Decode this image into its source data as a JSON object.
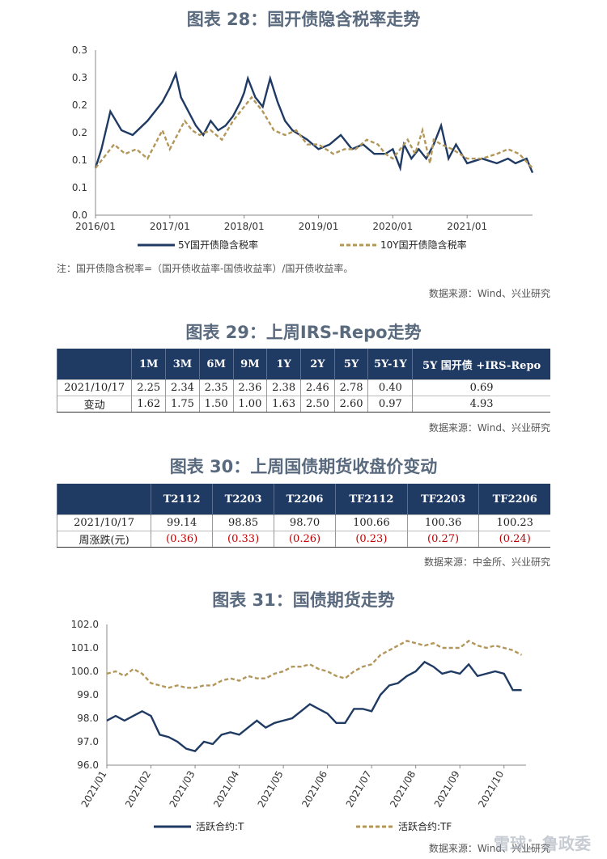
{
  "fig28": {
    "title": "图表 28：国开债隐含税率走势",
    "note": "注：国开债隐含税率=（国开债收益率-国债收益率）/国开债收益率。",
    "source": "数据来源：Wind、兴业研究",
    "chart_data": {
      "type": "line",
      "yticks": [
        "0.0",
        "0.1",
        "0.1",
        "0.2",
        "0.2",
        "0.3",
        "0.3"
      ],
      "ylim": [
        0,
        0.35
      ],
      "xticks": [
        "2016/01",
        "2017/01",
        "2018/01",
        "2019/01",
        "2020/01",
        "2021/01"
      ],
      "series": [
        {
          "name": "5Y国开债隐含税率",
          "color": "#1f3a63",
          "dash": false,
          "x": [
            2016.0,
            2016.08,
            2016.2,
            2016.35,
            2016.5,
            2016.7,
            2016.9,
            2017.0,
            2017.08,
            2017.15,
            2017.25,
            2017.35,
            2017.45,
            2017.55,
            2017.65,
            2017.75,
            2017.85,
            2017.95,
            2018.0,
            2018.05,
            2018.15,
            2018.25,
            2018.35,
            2018.45,
            2018.55,
            2018.65,
            2018.75,
            2018.85,
            2019.0,
            2019.15,
            2019.3,
            2019.45,
            2019.6,
            2019.75,
            2019.9,
            2020.0,
            2020.1,
            2020.15,
            2020.25,
            2020.35,
            2020.45,
            2020.55,
            2020.65,
            2020.75,
            2020.85,
            2021.0,
            2021.2,
            2021.4,
            2021.55,
            2021.65,
            2021.8,
            2021.88
          ],
          "y": [
            0.1,
            0.14,
            0.22,
            0.18,
            0.17,
            0.2,
            0.24,
            0.27,
            0.3,
            0.25,
            0.22,
            0.19,
            0.17,
            0.2,
            0.18,
            0.19,
            0.21,
            0.24,
            0.26,
            0.29,
            0.25,
            0.23,
            0.29,
            0.24,
            0.2,
            0.18,
            0.17,
            0.16,
            0.14,
            0.15,
            0.17,
            0.14,
            0.15,
            0.13,
            0.13,
            0.14,
            0.1,
            0.15,
            0.12,
            0.14,
            0.12,
            0.15,
            0.19,
            0.12,
            0.15,
            0.11,
            0.12,
            0.11,
            0.12,
            0.11,
            0.12,
            0.09
          ]
        },
        {
          "name": "10Y国开债隐含税率",
          "color": "#b3975a",
          "dash": true,
          "x": [
            2016.0,
            2016.1,
            2016.25,
            2016.4,
            2016.55,
            2016.7,
            2016.9,
            2017.0,
            2017.1,
            2017.2,
            2017.3,
            2017.4,
            2017.55,
            2017.7,
            2017.85,
            2018.0,
            2018.1,
            2018.25,
            2018.4,
            2018.55,
            2018.7,
            2018.85,
            2019.0,
            2019.2,
            2019.35,
            2019.5,
            2019.65,
            2019.8,
            2019.9,
            2020.0,
            2020.1,
            2020.2,
            2020.3,
            2020.4,
            2020.5,
            2020.55,
            2020.65,
            2020.8,
            2021.0,
            2021.2,
            2021.4,
            2021.55,
            2021.7,
            2021.88
          ],
          "y": [
            0.1,
            0.12,
            0.15,
            0.13,
            0.14,
            0.12,
            0.18,
            0.14,
            0.17,
            0.2,
            0.18,
            0.17,
            0.18,
            0.16,
            0.2,
            0.23,
            0.25,
            0.22,
            0.18,
            0.17,
            0.18,
            0.15,
            0.15,
            0.13,
            0.14,
            0.14,
            0.16,
            0.15,
            0.13,
            0.12,
            0.14,
            0.16,
            0.13,
            0.18,
            0.11,
            0.16,
            0.15,
            0.14,
            0.12,
            0.12,
            0.13,
            0.14,
            0.13,
            0.1
          ]
        }
      ]
    }
  },
  "fig29": {
    "title": "图表 29：上周IRS-Repo走势",
    "source": "数据来源：Wind、兴业研究",
    "headers": [
      "",
      "1M",
      "3M",
      "6M",
      "9M",
      "1Y",
      "2Y",
      "5Y",
      "5Y-1Y",
      "5Y 国开债 +IRS-Repo"
    ],
    "rows": [
      [
        "2021/10/17",
        "2.25",
        "2.34",
        "2.35",
        "2.36",
        "2.38",
        "2.46",
        "2.78",
        "0.40",
        "0.69"
      ],
      [
        "变动",
        "1.62",
        "1.75",
        "1.50",
        "1.00",
        "1.63",
        "2.50",
        "2.60",
        "0.97",
        "4.93"
      ]
    ]
  },
  "fig30": {
    "title": "图表 30：上周国债期货收盘价变动",
    "source": "数据来源：中金所、兴业研究",
    "headers": [
      "",
      "T2112",
      "T2203",
      "T2206",
      "TF2112",
      "TF2203",
      "TF2206"
    ],
    "rows": [
      [
        "2021/10/17",
        "99.14",
        "98.85",
        "98.70",
        "100.66",
        "100.36",
        "100.23"
      ],
      [
        "周涨跌(元)",
        "(0.36)",
        "(0.33)",
        "(0.26)",
        "(0.23)",
        "(0.27)",
        "(0.24)"
      ]
    ]
  },
  "fig31": {
    "title": "图表 31：国债期货走势",
    "source": "数据来源：Wind、兴业研究",
    "chart_data": {
      "type": "line",
      "ylim": [
        96.0,
        102.0
      ],
      "yticks": [
        "96.0",
        "97.0",
        "98.0",
        "99.0",
        "100.0",
        "101.0",
        "102.0"
      ],
      "xticks": [
        "2021/01",
        "2021/02",
        "2021/03",
        "2021/04",
        "2021/05",
        "2021/06",
        "2021/07",
        "2021/08",
        "2021/09",
        "2021/10"
      ],
      "series": [
        {
          "name": "活跃合约:T",
          "color": "#1f3a63",
          "dash": false,
          "x": [
            0,
            0.2,
            0.4,
            0.6,
            0.8,
            1.0,
            1.2,
            1.4,
            1.6,
            1.8,
            2.0,
            2.2,
            2.4,
            2.6,
            2.8,
            3.0,
            3.2,
            3.4,
            3.6,
            3.8,
            4.0,
            4.2,
            4.4,
            4.6,
            4.8,
            5.0,
            5.2,
            5.4,
            5.6,
            5.8,
            6.0,
            6.2,
            6.4,
            6.6,
            6.8,
            7.0,
            7.2,
            7.4,
            7.6,
            7.8,
            8.0,
            8.2,
            8.4,
            8.6,
            8.8,
            9.0,
            9.2,
            9.4
          ],
          "y": [
            97.9,
            98.1,
            97.9,
            98.1,
            98.3,
            98.1,
            97.3,
            97.2,
            97.0,
            96.7,
            96.6,
            97.0,
            96.9,
            97.3,
            97.4,
            97.3,
            97.6,
            97.9,
            97.6,
            97.8,
            97.9,
            98.0,
            98.3,
            98.6,
            98.4,
            98.2,
            97.8,
            97.8,
            98.4,
            98.4,
            98.3,
            99.0,
            99.4,
            99.5,
            99.8,
            100.0,
            100.4,
            100.2,
            99.9,
            100.0,
            99.9,
            100.3,
            99.8,
            99.9,
            100.0,
            99.9,
            99.2,
            99.2
          ]
        },
        {
          "name": "活跃合约:TF",
          "color": "#b3975a",
          "dash": true,
          "x": [
            0,
            0.2,
            0.4,
            0.6,
            0.8,
            1.0,
            1.2,
            1.4,
            1.6,
            1.8,
            2.0,
            2.2,
            2.4,
            2.6,
            2.8,
            3.0,
            3.2,
            3.4,
            3.6,
            3.8,
            4.0,
            4.2,
            4.4,
            4.6,
            4.8,
            5.0,
            5.2,
            5.4,
            5.6,
            5.8,
            6.0,
            6.2,
            6.4,
            6.6,
            6.8,
            7.0,
            7.2,
            7.4,
            7.6,
            7.8,
            8.0,
            8.2,
            8.4,
            8.6,
            8.8,
            9.0,
            9.2,
            9.4
          ],
          "y": [
            99.9,
            100.0,
            99.8,
            100.1,
            99.9,
            99.5,
            99.4,
            99.3,
            99.4,
            99.3,
            99.3,
            99.4,
            99.4,
            99.6,
            99.7,
            99.6,
            99.8,
            99.7,
            99.7,
            99.9,
            100.0,
            100.2,
            100.2,
            100.3,
            100.1,
            100.0,
            99.8,
            99.7,
            100.0,
            100.2,
            100.3,
            100.7,
            100.9,
            101.1,
            101.3,
            101.2,
            101.1,
            101.2,
            101.0,
            101.0,
            101.0,
            101.3,
            101.1,
            101.0,
            101.1,
            101.0,
            100.9,
            100.7
          ]
        }
      ]
    }
  },
  "watermark": "雪球：鲁政委"
}
